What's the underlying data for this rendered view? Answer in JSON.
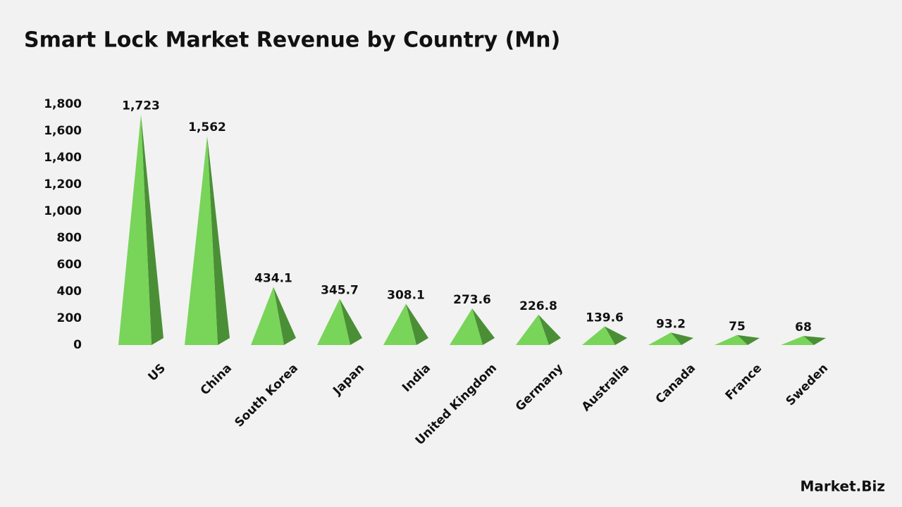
{
  "chart_data": {
    "type": "bar",
    "title": "Smart Lock Market Revenue by Country (Mn)",
    "categories": [
      "US",
      "China",
      "South Korea",
      "Japan",
      "India",
      "United Kingdom",
      "Germany",
      "Australia",
      "Canada",
      "France",
      "Sweden"
    ],
    "values": [
      1723,
      1562,
      434.1,
      345.7,
      308.1,
      273.6,
      226.8,
      139.6,
      93.2,
      75,
      68
    ],
    "value_labels": [
      "1,723",
      "1,562",
      "434.1",
      "345.7",
      "308.1",
      "273.6",
      "226.8",
      "139.6",
      "93.2",
      "75",
      "68"
    ],
    "color": "#79d45a",
    "ylim": [
      0,
      1800
    ],
    "yticks": [
      0,
      200,
      400,
      600,
      800,
      {
        "value": 1000,
        "label": "1,000"
      },
      {
        "value": 1200,
        "label": "1,200"
      },
      {
        "value": 1400,
        "label": "1,400"
      },
      {
        "value": 1600,
        "label": "1,600"
      },
      {
        "value": 1800,
        "label": "1,800"
      }
    ],
    "grid": false
  },
  "brand": "Market.Biz"
}
